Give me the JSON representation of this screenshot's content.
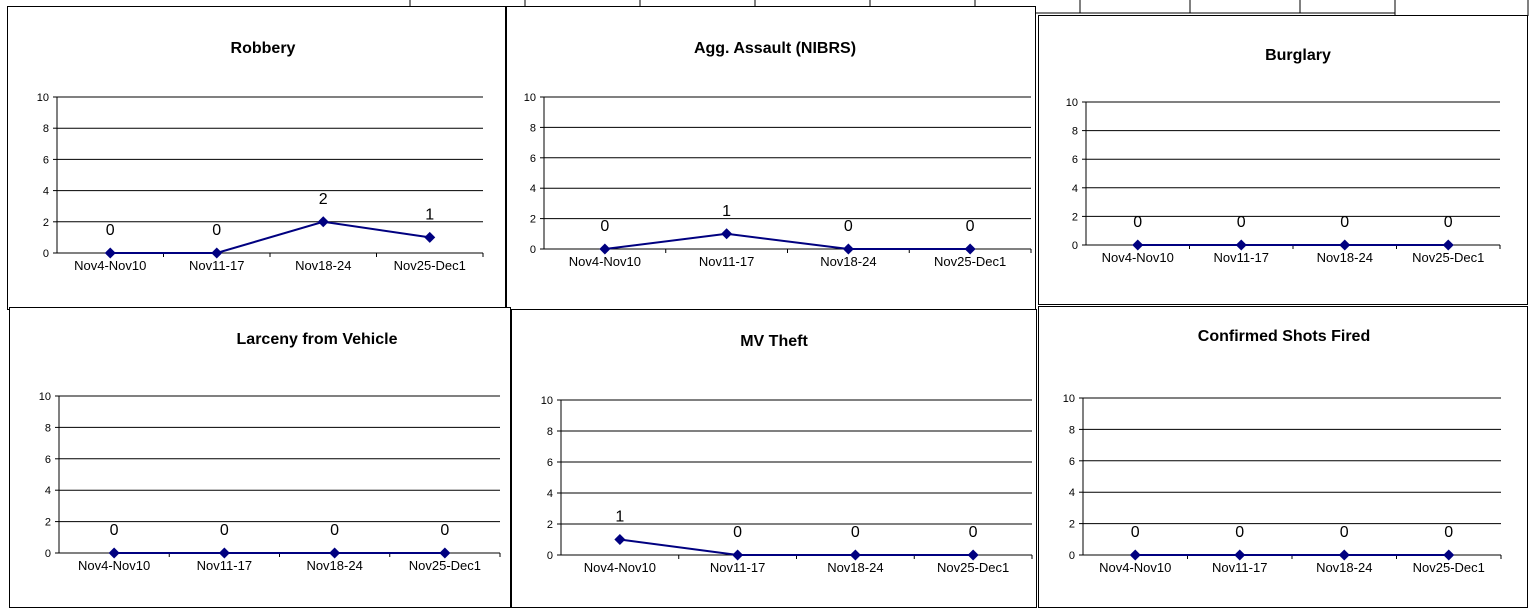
{
  "chart_data": [
    {
      "type": "line",
      "title": "Robbery",
      "categories": [
        "Nov4-Nov10",
        "Nov11-17",
        "Nov18-24",
        "Nov25-Dec1"
      ],
      "values": [
        0,
        0,
        2,
        1
      ],
      "yticks": [
        "0",
        "2",
        "4",
        "6",
        "8",
        "10"
      ],
      "ylim": [
        0,
        10
      ],
      "grid": true,
      "legend": "none",
      "line_color": "#000080"
    },
    {
      "type": "line",
      "title": "Agg. Assault (NIBRS)",
      "categories": [
        "Nov4-Nov10",
        "Nov11-17",
        "Nov18-24",
        "Nov25-Dec1"
      ],
      "values": [
        0,
        1,
        0,
        0
      ],
      "yticks": [
        "0",
        "2",
        "4",
        "6",
        "8",
        "10"
      ],
      "ylim": [
        0,
        10
      ],
      "grid": true,
      "legend": "none",
      "line_color": "#000080"
    },
    {
      "type": "line",
      "title": "Burglary",
      "categories": [
        "Nov4-Nov10",
        "Nov11-17",
        "Nov18-24",
        "Nov25-Dec1"
      ],
      "values": [
        0,
        0,
        0,
        0
      ],
      "yticks": [
        "0",
        "2",
        "4",
        "6",
        "8",
        "10"
      ],
      "ylim": [
        0,
        10
      ],
      "grid": true,
      "legend": "none",
      "line_color": "#000080"
    },
    {
      "type": "line",
      "title": "Larceny from Vehicle",
      "categories": [
        "Nov4-Nov10",
        "Nov11-17",
        "Nov18-24",
        "Nov25-Dec1"
      ],
      "values": [
        0,
        0,
        0,
        0
      ],
      "yticks": [
        "0",
        "2",
        "4",
        "6",
        "8",
        "10"
      ],
      "ylim": [
        0,
        10
      ],
      "grid": true,
      "legend": "none",
      "line_color": "#000080"
    },
    {
      "type": "line",
      "title": "MV Theft",
      "categories": [
        "Nov4-Nov10",
        "Nov11-17",
        "Nov18-24",
        "Nov25-Dec1"
      ],
      "values": [
        1,
        0,
        0,
        0
      ],
      "yticks": [
        "0",
        "2",
        "4",
        "6",
        "8",
        "10"
      ],
      "ylim": [
        0,
        10
      ],
      "grid": true,
      "legend": "none",
      "line_color": "#000080"
    },
    {
      "type": "line",
      "title": "Confirmed Shots Fired",
      "categories": [
        "Nov4-Nov10",
        "Nov11-17",
        "Nov18-24",
        "Nov25-Dec1"
      ],
      "values": [
        0,
        0,
        0,
        0
      ],
      "yticks": [
        "0",
        "2",
        "4",
        "6",
        "8",
        "10"
      ],
      "ylim": [
        0,
        10
      ],
      "grid": true,
      "legend": "none",
      "line_color": "#000080"
    }
  ]
}
